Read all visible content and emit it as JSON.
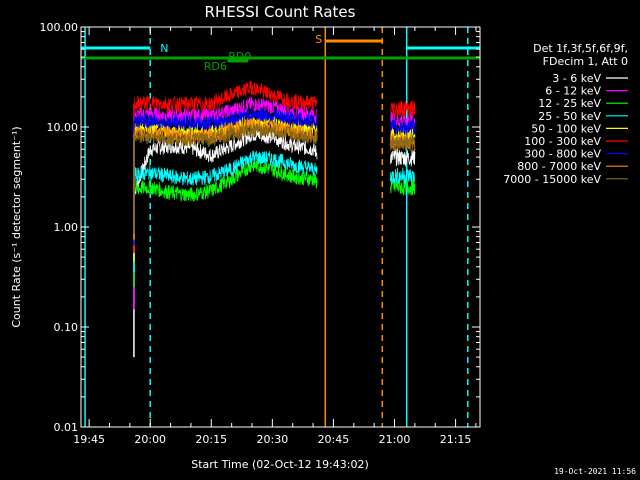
{
  "chart_data": {
    "type": "line",
    "title": "RHESSI Count Rates",
    "xlabel": "Start Time (02-Oct-12 19:43:02)",
    "ylabel": "Count Rate (s⁻¹ detector segment⁻¹)",
    "yscale": "log",
    "ylim": [
      0.01,
      100
    ],
    "xlim": [
      "19:43",
      "21:21"
    ],
    "x_ticks": [
      "19:45",
      "20:00",
      "20:15",
      "20:30",
      "20:45",
      "21:00",
      "21:15"
    ],
    "y_ticks": [
      "0.01",
      "0.10",
      "1.00",
      "10.00",
      "100.00"
    ],
    "legend_header": [
      "Det 1f,3f,5f,6f,9f,",
      "FDecim 1, Att 0"
    ],
    "legend_placement": "right",
    "data_gaps": [
      [
        "19:43",
        "19:55"
      ],
      [
        "20:42",
        "20:58"
      ],
      [
        "21:06",
        "21:21"
      ]
    ],
    "series": [
      {
        "name": "3 - 6 keV",
        "color": "#ffffff",
        "x": [
          "19:56",
          "20:00",
          "20:05",
          "20:10",
          "20:15",
          "20:20",
          "20:25",
          "20:30",
          "20:35",
          "20:40",
          "20:41"
        ],
        "values": [
          2.2,
          6.0,
          6.5,
          6.2,
          5.2,
          6.5,
          8.5,
          8.0,
          6.5,
          6.0,
          5.5
        ]
      },
      {
        "name": "6 - 12 keV",
        "color": "#ff00ff",
        "x": [
          "19:56",
          "20:00",
          "20:05",
          "20:10",
          "20:15",
          "20:20",
          "20:25",
          "20:30",
          "20:35",
          "20:40",
          "20:41"
        ],
        "values": [
          13.0,
          13.5,
          13.0,
          13.0,
          13.0,
          14.5,
          17.0,
          16.0,
          14.0,
          13.5,
          13.0
        ]
      },
      {
        "name": "12 - 25 keV",
        "color": "#00ff00",
        "x": [
          "19:56",
          "20:00",
          "20:05",
          "20:10",
          "20:15",
          "20:20",
          "20:25",
          "20:30",
          "20:35",
          "20:40",
          "20:41"
        ],
        "values": [
          2.4,
          2.5,
          2.2,
          2.1,
          2.3,
          3.0,
          4.2,
          3.8,
          3.2,
          3.0,
          2.8
        ]
      },
      {
        "name": "25 - 50 keV",
        "color": "#00ffff",
        "x": [
          "19:56",
          "20:00",
          "20:05",
          "20:10",
          "20:15",
          "20:20",
          "20:25",
          "20:30",
          "20:35",
          "20:40",
          "20:41"
        ],
        "values": [
          3.3,
          3.5,
          3.2,
          3.0,
          3.2,
          3.8,
          5.0,
          4.8,
          4.2,
          3.8,
          3.6
        ]
      },
      {
        "name": "50 - 100 keV",
        "color": "#ffff00",
        "x": [
          "19:56",
          "20:00",
          "20:05",
          "20:10",
          "20:15",
          "20:20",
          "20:25",
          "20:30",
          "20:35",
          "20:40",
          "20:41"
        ],
        "values": [
          9.5,
          9.5,
          9.0,
          9.0,
          9.0,
          10.0,
          11.5,
          11.0,
          10.0,
          9.5,
          9.0
        ]
      },
      {
        "name": "100 - 300 keV",
        "color": "#ff0000",
        "x": [
          "19:56",
          "20:00",
          "20:05",
          "20:10",
          "20:15",
          "20:20",
          "20:25",
          "20:30",
          "20:35",
          "20:40",
          "20:41"
        ],
        "values": [
          17.0,
          17.5,
          17.0,
          17.0,
          17.0,
          21.0,
          25.0,
          21.0,
          18.0,
          17.5,
          17.0
        ]
      },
      {
        "name": "300 - 800 keV",
        "color": "#0000ff",
        "x": [
          "19:56",
          "20:00",
          "20:05",
          "20:10",
          "20:15",
          "20:20",
          "20:25",
          "20:30",
          "20:35",
          "20:40",
          "20:41"
        ],
        "values": [
          11.5,
          11.5,
          11.0,
          11.0,
          11.0,
          12.0,
          13.5,
          13.0,
          12.0,
          11.5,
          11.0
        ]
      },
      {
        "name": "800 - 7000 keV",
        "color": "#ff8c00",
        "x": [
          "19:56",
          "20:00",
          "20:05",
          "20:10",
          "20:15",
          "20:20",
          "20:25",
          "20:30",
          "20:35",
          "20:40",
          "20:41"
        ],
        "values": [
          8.5,
          8.5,
          8.5,
          8.0,
          8.0,
          9.5,
          10.5,
          10.0,
          9.0,
          8.5,
          8.0
        ]
      },
      {
        "name": "7000 - 15000 keV",
        "color": "#8b6914",
        "x": [
          "19:56",
          "20:00",
          "20:05",
          "20:10",
          "20:15",
          "20:20",
          "20:25",
          "20:30",
          "20:35",
          "20:40",
          "20:41"
        ],
        "values": [
          8.0,
          8.0,
          7.5,
          7.5,
          7.5,
          8.5,
          9.5,
          9.0,
          8.5,
          8.0,
          7.5
        ]
      }
    ],
    "annotations": [
      {
        "label": "N",
        "color": "#00ffff",
        "x_start": "19:43",
        "x_end": "20:00"
      },
      {
        "label": "",
        "color": "#00ffff",
        "x_start": "21:03",
        "x_end": "21:21"
      },
      {
        "label": "S",
        "color": "#ff8c00",
        "x_start": "20:43",
        "x_end": "20:57"
      },
      {
        "label": "RD0",
        "color": "#00a000",
        "x_start": "20:19",
        "x_end": "20:24"
      },
      {
        "label": "RD6",
        "color": "#00a000",
        "x_start": "19:43",
        "x_end": "21:21"
      }
    ],
    "vertical_markers": [
      {
        "x": "19:44",
        "color": "#00ffff",
        "style": "solid"
      },
      {
        "x": "20:00",
        "color": "#00ffff",
        "style": "dashed"
      },
      {
        "x": "20:43",
        "color": "#ff8c00",
        "style": "solid"
      },
      {
        "x": "20:57",
        "color": "#ff8c00",
        "style": "dashed"
      },
      {
        "x": "21:03",
        "color": "#00ffff",
        "style": "solid"
      },
      {
        "x": "21:18",
        "color": "#00ffff",
        "style": "dashed"
      }
    ]
  },
  "footer": {
    "timestamp": "19-Oct-2021 11:56"
  }
}
